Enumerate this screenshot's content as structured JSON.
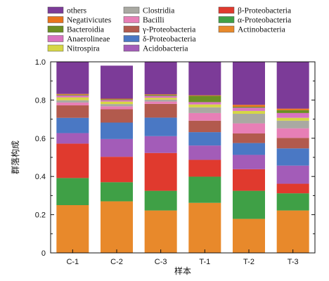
{
  "chart_data": {
    "type": "bar",
    "stacked": true,
    "categories": [
      "C-1",
      "C-2",
      "C-3",
      "T-1",
      "T-2",
      "T-3"
    ],
    "xlabel": "样本",
    "ylabel": "群落构成",
    "ylim": [
      0,
      1.0
    ],
    "yticks": [
      "0",
      "0.2",
      "0.4",
      "0.6",
      "0.8",
      "1.0"
    ],
    "legend_columns": [
      [
        "others",
        "Negativicutes",
        "Bacteroidia",
        "Anaerolineae",
        "Nitrospira"
      ],
      [
        "Clostridia",
        "Bacilli",
        "γ-Proteobacteria",
        "δ-Proteobacteria",
        "Acidobacteria"
      ],
      [
        "β-Proteobacteria",
        "α-Proteobacteria",
        "Actinobacteria"
      ]
    ],
    "series": [
      {
        "name": "Actinobacteria",
        "color": "#E8892B",
        "values": [
          0.25,
          0.27,
          0.222,
          0.262,
          0.178,
          0.222
        ]
      },
      {
        "name": "α-Proteobacteria",
        "color": "#3FA046",
        "values": [
          0.142,
          0.1,
          0.103,
          0.137,
          0.147,
          0.09
        ]
      },
      {
        "name": "β-Proteobacteria",
        "color": "#E03A2E",
        "values": [
          0.18,
          0.133,
          0.198,
          0.088,
          0.113,
          0.05
        ]
      },
      {
        "name": "Acidobacteria",
        "color": "#A35CB8",
        "values": [
          0.055,
          0.093,
          0.088,
          0.075,
          0.075,
          0.095
        ]
      },
      {
        "name": "δ-Proteobacteria",
        "color": "#4A78C4",
        "values": [
          0.08,
          0.086,
          0.097,
          0.07,
          0.062,
          0.09
        ]
      },
      {
        "name": "γ-Proteobacteria",
        "color": "#B25A4D",
        "values": [
          0.065,
          0.07,
          0.072,
          0.06,
          0.05,
          0.055
        ]
      },
      {
        "name": "Bacilli",
        "color": "#E77FB6",
        "values": [
          0.015,
          0.015,
          0.012,
          0.04,
          0.053,
          0.05
        ]
      },
      {
        "name": "Clostridia",
        "color": "#A9A9A2",
        "values": [
          0.012,
          0.012,
          0.01,
          0.03,
          0.05,
          0.04
        ]
      },
      {
        "name": "Nitrospira",
        "color": "#D6D645",
        "values": [
          0.015,
          0.013,
          0.01,
          0.015,
          0.015,
          0.015
        ]
      },
      {
        "name": "Anaerolineae",
        "color": "#D873C1",
        "values": [
          0.01,
          0.008,
          0.01,
          0.012,
          0.017,
          0.025
        ]
      },
      {
        "name": "Bacteroidia",
        "color": "#6B8E23",
        "values": [
          0.004,
          0.004,
          0.005,
          0.033,
          0.005,
          0.015
        ]
      },
      {
        "name": "Negativicutes",
        "color": "#E8731C",
        "values": [
          0.004,
          0.003,
          0.003,
          0.003,
          0.01,
          0.008
        ]
      },
      {
        "name": "others",
        "color": "#7C3B98",
        "values": [
          0.168,
          0.173,
          0.17,
          0.175,
          0.225,
          0.245
        ]
      }
    ]
  }
}
